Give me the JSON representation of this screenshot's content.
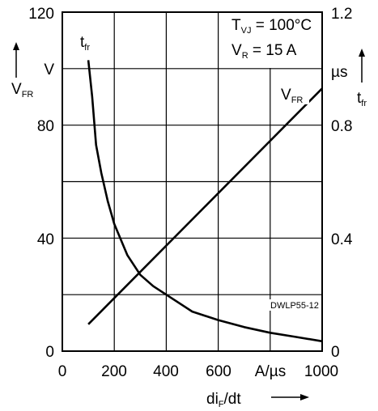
{
  "chart_data": {
    "type": "line",
    "x_ticks": [
      "0",
      "200",
      "400",
      "600",
      "A/µs",
      "1000"
    ],
    "y_left_ticks": [
      "0",
      "40",
      "80",
      "V",
      "120"
    ],
    "y_right_ticks": [
      "0",
      "0.4",
      "0.8",
      "µs",
      "1.2"
    ],
    "xlim": [
      0,
      1000
    ],
    "ylim_left": [
      0,
      120
    ],
    "ylim_right": [
      0,
      1.2
    ],
    "grid": true,
    "xlabel": {
      "main": "di",
      "sub": "F",
      "tail": "/dt"
    },
    "ylabel_left": {
      "main": "V",
      "sub": "FR"
    },
    "ylabel_right": {
      "main": "t",
      "sub": "fr"
    },
    "conditions": {
      "line1": {
        "main": "T",
        "sub": "VJ",
        "tail": " = 100°C"
      },
      "line2": {
        "main": "V",
        "sub": "R",
        "tail": " = 15 A"
      }
    },
    "code": "DWLP55-12",
    "series": [
      {
        "name": "t_fr",
        "label": {
          "main": "t",
          "sub": "fr"
        },
        "axis": "right",
        "x": [
          100,
          115,
          130,
          150,
          175,
          200,
          250,
          300,
          350,
          400,
          500,
          600,
          700,
          800,
          900,
          1000
        ],
        "values": [
          1.03,
          0.9,
          0.73,
          0.63,
          0.53,
          0.45,
          0.34,
          0.27,
          0.23,
          0.2,
          0.14,
          0.11,
          0.085,
          0.065,
          0.05,
          0.035
        ]
      },
      {
        "name": "V_FR",
        "label": {
          "main": "V",
          "sub": "FR"
        },
        "axis": "left",
        "x": [
          100,
          1000
        ],
        "values": [
          9.5,
          93
        ]
      }
    ]
  }
}
